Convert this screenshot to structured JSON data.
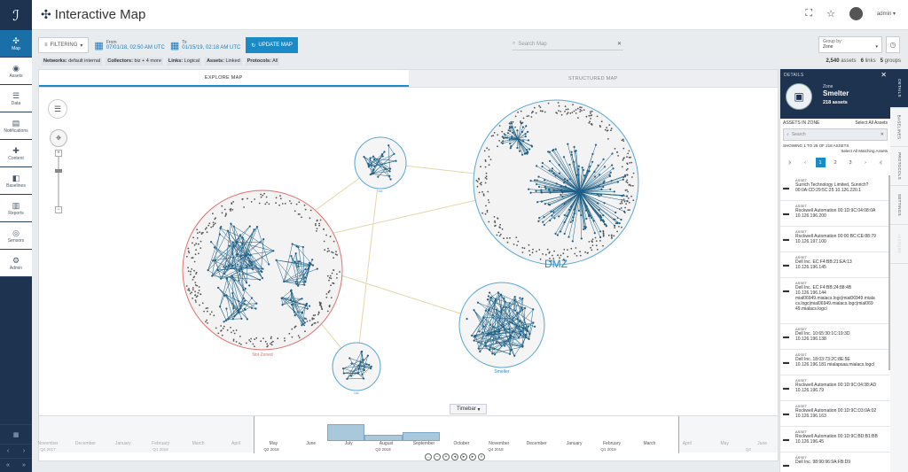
{
  "app": {
    "title": "Interactive Map",
    "logo_text": "IS"
  },
  "sidebar": {
    "items": [
      {
        "label": "Map",
        "icon": "map-icon",
        "active": true
      },
      {
        "label": "Assets",
        "icon": "assets-icon"
      },
      {
        "label": "Data",
        "icon": "data-icon"
      },
      {
        "label": "Notifications",
        "icon": "bell-icon"
      },
      {
        "label": "Content",
        "icon": "content-icon"
      },
      {
        "label": "Baselines",
        "icon": "baseline-icon"
      },
      {
        "label": "Reports",
        "icon": "reports-icon"
      },
      {
        "label": "Sensors",
        "icon": "sensors-icon"
      },
      {
        "label": "Admin",
        "icon": "gear-icon"
      }
    ]
  },
  "header": {
    "user": "admin"
  },
  "filters": {
    "filtering_label": "FILTERING",
    "from_label": "From",
    "from_value": "07/01/18, 02:50 AM UTC",
    "to_label": "To",
    "to_value": "01/15/19, 02:18 AM UTC",
    "update_label": "UPDATE MAP",
    "search_placeholder": "Search Map",
    "group_by_label": "Group by:",
    "group_by_value": "Zone"
  },
  "tags": [
    {
      "key": "Networks:",
      "value": "default internal"
    },
    {
      "key": "Collectors:",
      "value": "biz + 4 more"
    },
    {
      "key": "Links:",
      "value": "Logical"
    },
    {
      "key": "Assets:",
      "value": "Linked"
    },
    {
      "key": "Protocols:",
      "value": "All"
    }
  ],
  "counts": {
    "assets_num": "2,540",
    "assets_lbl": "assets",
    "links_num": "6",
    "links_lbl": "links",
    "groups_num": "5",
    "groups_lbl": "groups"
  },
  "map": {
    "tabs": [
      {
        "label": "EXPLORE MAP",
        "active": true
      },
      {
        "label": "STRUCTURED MAP",
        "active": false
      }
    ],
    "zones": {
      "dmz": "DMZ",
      "nozone": "Not Zoned",
      "smelter": "Smelter",
      "small1": "biz",
      "small2": "lab"
    },
    "timebar_label": "Timebar"
  },
  "timeline": {
    "months": [
      {
        "label": "November",
        "faded": true
      },
      {
        "label": "December",
        "faded": true
      },
      {
        "label": "January",
        "faded": true
      },
      {
        "label": "February",
        "faded": true
      },
      {
        "label": "March",
        "faded": true
      },
      {
        "label": "April",
        "faded": true
      },
      {
        "label": "May",
        "faded": false
      },
      {
        "label": "June",
        "faded": false
      },
      {
        "label": "July",
        "faded": false
      },
      {
        "label": "August",
        "faded": false
      },
      {
        "label": "September",
        "faded": false
      },
      {
        "label": "October",
        "faded": false
      },
      {
        "label": "November",
        "faded": false
      },
      {
        "label": "December",
        "faded": false
      },
      {
        "label": "January",
        "faded": false
      },
      {
        "label": "February",
        "faded": false
      },
      {
        "label": "March",
        "faded": false
      },
      {
        "label": "April",
        "faded": true
      },
      {
        "label": "May",
        "faded": true
      },
      {
        "label": "June",
        "faded": true
      }
    ],
    "quarters": [
      {
        "label": "Q4 2017",
        "faded": true
      },
      {
        "label": "Q1 2018",
        "faded": true
      },
      {
        "label": "Q2 2018",
        "faded": false
      },
      {
        "label": "Q3 2018",
        "faded": false
      },
      {
        "label": "Q4 2018",
        "faded": false
      },
      {
        "label": "Q1 2019",
        "faded": false
      },
      {
        "label": "Q2",
        "faded": true
      }
    ]
  },
  "details": {
    "title": "DETAILS",
    "zone_type": "Zone",
    "zone_name": "Smelter",
    "zone_count": "218 assets",
    "assets_in_zone": "ASSETS IN ZONE",
    "select_all": "Select All Assets",
    "search_placeholder": "Search",
    "showing": "SHOWING 1 TO 25 OF 218 ASSETS",
    "select_matching": "Select All Matching Assets",
    "pages": [
      "1",
      "2",
      "3"
    ],
    "assets": [
      {
        "kind": "ASSET",
        "l1": "Surrich Technology Limited, Sunrich?",
        "l2": "00:0A:CD:29:5C:25 10.126.220.1",
        "l3": ""
      },
      {
        "kind": "ASSET",
        "l1": "Rockwell Automation 00:1D:9C:04:08:0A",
        "l2": "10.126.196.200",
        "l3": ""
      },
      {
        "kind": "ASSET",
        "l1": "Rockwell Automation 00:00:BC:CE:88:79",
        "l2": "10.126.197.100",
        "l3": ""
      },
      {
        "kind": "ASSET",
        "l1": "Dell Inc. EC:F4:BB:21:EA:13",
        "l2": "10.126.196.145",
        "l3": ""
      },
      {
        "kind": "ASSET",
        "l1": "Dell Inc. EC:F4:BB:24:88:4B",
        "l2": "10.126.196.144",
        "l3": "mial06949.mialacs.logc|mial06949.miala",
        "l4": "cs.logc|mial06949.mialacs.logc|mial069",
        "l5": "49.mialacs.logcl"
      },
      {
        "kind": "ASSET",
        "l1": "Dell Inc. 10:65:30:1C:19:3D",
        "l2": "10.126.196.138",
        "l3": ""
      },
      {
        "kind": "ASSET",
        "l1": "Dell Inc. 18:03:73:2C:8E:5E",
        "l2": "10.126.196.181 mialapsaa.mialacs.logcl",
        "l3": ""
      },
      {
        "kind": "ASSET",
        "l1": "Rockwell Automation 00:1D:9C:04:38:AD",
        "l2": "10.126.196.79",
        "l3": ""
      },
      {
        "kind": "ASSET",
        "l1": "Rockwell Automation 00:1D:9C:D3:0A:02",
        "l2": "10.126.196.163",
        "l3": ""
      },
      {
        "kind": "ASSET",
        "l1": "Rockwell Automation 00:1D:9C:BD:B1:BB",
        "l2": "10.126.196.45",
        "l3": ""
      },
      {
        "kind": "ASSET",
        "l1": "Dell Inc. 98:90:96:9A:FB:D9",
        "l2": "",
        "l3": ""
      }
    ],
    "vtabs": [
      "DETAILS",
      "BASELINES",
      "PROTOCOLS",
      "SETTINGS",
      "HISTORY"
    ]
  },
  "colors": {
    "sidebar": "#1e3350",
    "accent": "#1a8bc6",
    "edge": "#1d5f86",
    "nozone_ring": "#e07070"
  }
}
